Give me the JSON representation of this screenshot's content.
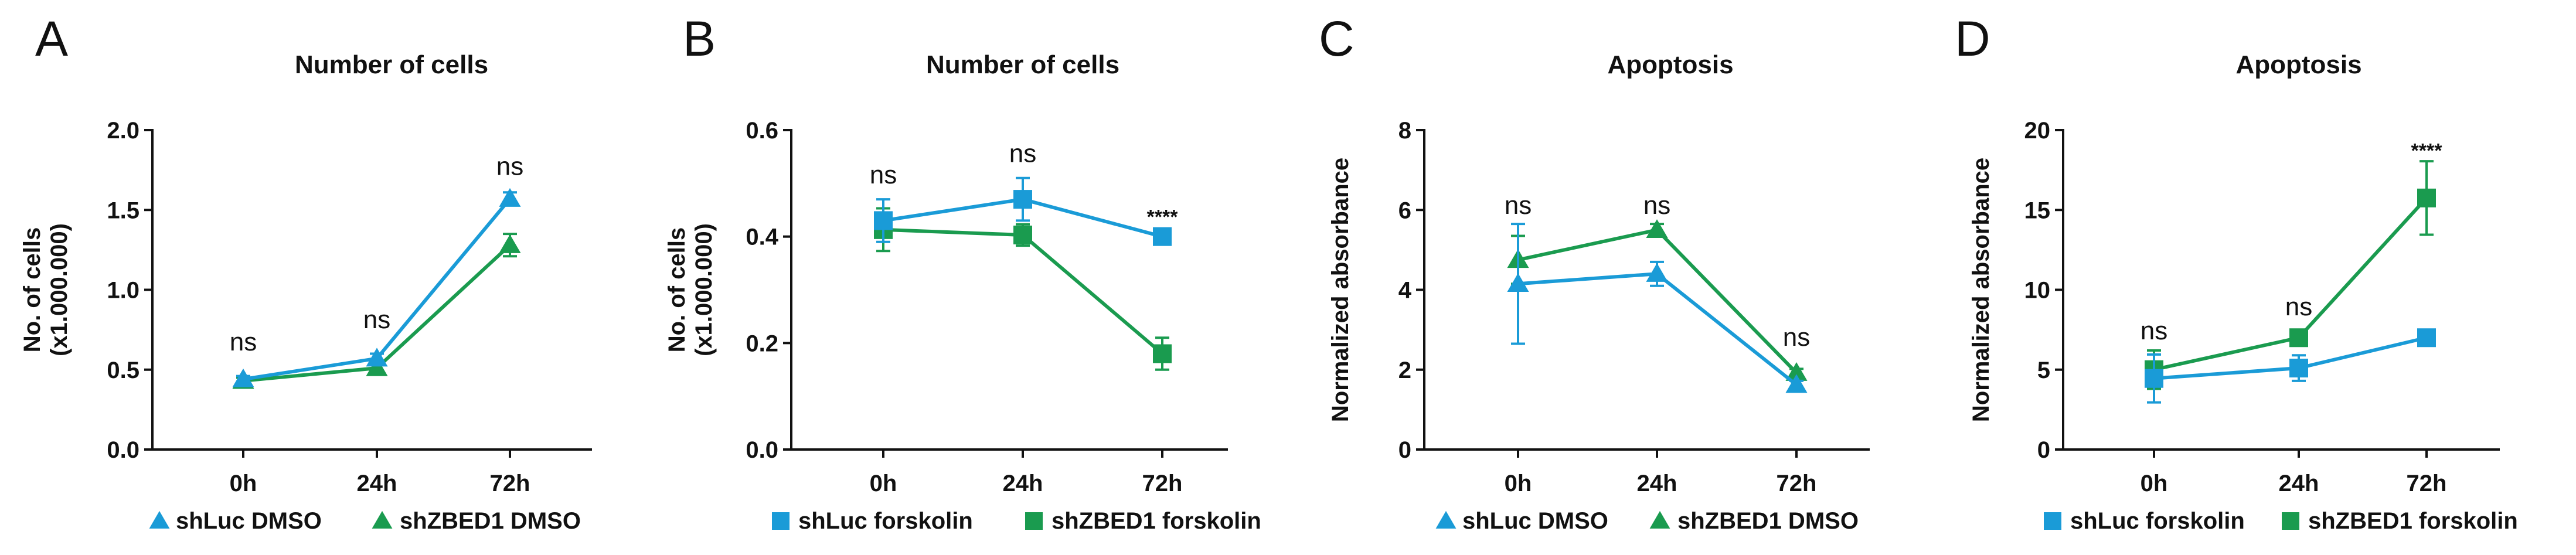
{
  "colors": {
    "shLuc": "#1a9bd7",
    "shZBED1": "#1a9b4f",
    "axis": "#111111"
  },
  "chart_data": [
    {
      "panel": "A",
      "type": "line",
      "title": "Number of cells",
      "ylabel": [
        "No. of cells",
        "(x1.000.000)"
      ],
      "xlabel": "",
      "categories": [
        "0h",
        "24h",
        "72h"
      ],
      "ylim": [
        0,
        2.0
      ],
      "yticks": [
        "0.0",
        "0.5",
        "1.0",
        "1.5",
        "2.0"
      ],
      "series": [
        {
          "name": "shLuc DMSO",
          "color": "#1a9bd7",
          "marker": "triangle",
          "values": [
            0.44,
            0.57,
            1.57
          ],
          "errors": [
            0.02,
            0.03,
            0.04
          ]
        },
        {
          "name": "shZBED1 DMSO",
          "color": "#1a9b4f",
          "marker": "triangle",
          "values": [
            0.43,
            0.51,
            1.28
          ],
          "errors": [
            0.02,
            0.03,
            0.07
          ]
        }
      ],
      "annotations": [
        "ns",
        "ns",
        "ns"
      ],
      "annotation_y": [
        0.62,
        0.76,
        1.72
      ]
    },
    {
      "panel": "B",
      "type": "line",
      "title": "Number of cells",
      "ylabel": [
        "No. of cells",
        "(x1.000.000)"
      ],
      "xlabel": "",
      "categories": [
        "0h",
        "24h",
        "72h"
      ],
      "ylim": [
        0,
        0.6
      ],
      "yticks": [
        "0.0",
        "0.2",
        "0.4",
        "0.6"
      ],
      "series": [
        {
          "name": "shLuc forskolin",
          "color": "#1a9bd7",
          "marker": "square",
          "values": [
            0.43,
            0.47,
            0.4
          ],
          "errors": [
            0.04,
            0.04,
            0.015
          ]
        },
        {
          "name": "shZBED1 forskolin",
          "color": "#1a9b4f",
          "marker": "square",
          "values": [
            0.413,
            0.403,
            0.18
          ],
          "errors": [
            0.04,
            0.02,
            0.03
          ]
        }
      ],
      "annotations": [
        "ns",
        "ns",
        "****"
      ],
      "annotation_y": [
        0.5,
        0.54,
        0.44
      ]
    },
    {
      "panel": "C",
      "type": "line",
      "title": "Apoptosis",
      "ylabel": [
        "Normalized absorbance"
      ],
      "xlabel": "",
      "categories": [
        "0h",
        "24h",
        "72h"
      ],
      "ylim": [
        0,
        8
      ],
      "yticks": [
        "0",
        "2",
        "4",
        "6",
        "8"
      ],
      "series": [
        {
          "name": "shLuc DMSO",
          "color": "#1a9bd7",
          "marker": "triangle",
          "values": [
            4.15,
            4.4,
            1.62
          ],
          "errors": [
            1.5,
            0.3,
            0.1
          ]
        },
        {
          "name": "shZBED1 DMSO",
          "color": "#1a9b4f",
          "marker": "triangle",
          "values": [
            4.75,
            5.5,
            1.92
          ],
          "errors": [
            0.6,
            0.15,
            0.1
          ]
        }
      ],
      "annotations": [
        "ns",
        "ns",
        "ns"
      ],
      "annotation_y": [
        5.9,
        5.9,
        2.6
      ]
    },
    {
      "panel": "D",
      "type": "line",
      "title": "Apoptosis",
      "ylabel": [
        "Normalized absorbance"
      ],
      "xlabel": "",
      "categories": [
        "0h",
        "24h",
        "72h"
      ],
      "ylim": [
        0,
        20
      ],
      "yticks": [
        "0",
        "5",
        "10",
        "15",
        "20"
      ],
      "series": [
        {
          "name": "shLuc forskolin",
          "color": "#1a9bd7",
          "marker": "square",
          "values": [
            4.45,
            5.1,
            7.0
          ],
          "errors": [
            1.5,
            0.8,
            0.3
          ]
        },
        {
          "name": "shZBED1 forskolin",
          "color": "#1a9b4f",
          "marker": "square",
          "values": [
            5.0,
            7.0,
            15.75
          ],
          "errors": [
            1.2,
            0.3,
            2.3
          ]
        }
      ],
      "annotations": [
        "ns",
        "ns",
        "****"
      ],
      "annotation_y": [
        6.9,
        8.4,
        18.8
      ]
    }
  ]
}
